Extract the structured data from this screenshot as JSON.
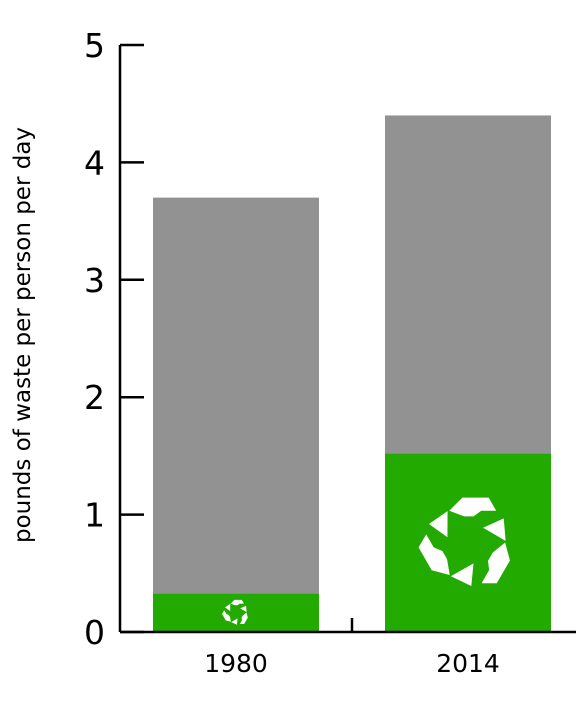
{
  "chart_data": {
    "type": "bar",
    "stacked": true,
    "ylabel": "pounds of waste per person per day",
    "xlabel": "",
    "ylim": [
      0,
      5
    ],
    "yticks": [
      "0",
      "1",
      "2",
      "3",
      "4",
      "5"
    ],
    "categories": [
      "1980",
      "2014"
    ],
    "series": [
      {
        "values": [
          0.33,
          1.52
        ],
        "color": "#22aa00",
        "icon": "recycle-icon"
      },
      {
        "values": [
          3.37,
          2.88
        ],
        "color": "#929292"
      }
    ],
    "totals": [
      3.7,
      4.4
    ],
    "grid": false,
    "legend": "none"
  }
}
